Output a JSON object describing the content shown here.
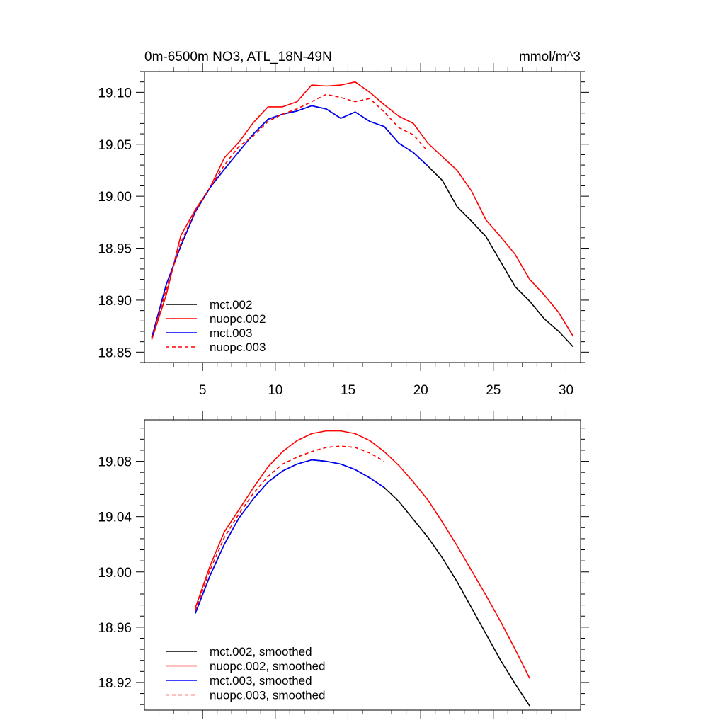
{
  "chart_data": [
    {
      "type": "line",
      "title": "0m-6500m NO3, ATL_18N-49N",
      "units": "mmol/m^3",
      "xlim": [
        1,
        31
      ],
      "ylim": [
        18.84,
        19.12
      ],
      "xticks": [
        5,
        10,
        15,
        20,
        25,
        30
      ],
      "xtick_labels": [
        "5",
        "10",
        "15",
        "20",
        "25",
        "30"
      ],
      "yticks": [
        18.85,
        18.9,
        18.95,
        19.0,
        19.05,
        19.1
      ],
      "ytick_labels": [
        "18.85",
        "18.90",
        "18.95",
        "19.00",
        "19.05",
        "19.10"
      ],
      "legend_position": "lower-left",
      "series": [
        {
          "name": "mct.002",
          "color": "#000000",
          "dash": "solid",
          "x": [
            1.5,
            2.5,
            3.5,
            4.5,
            5.5,
            6.5,
            7.5,
            8.5,
            9.5,
            10.5,
            11.5,
            12.5,
            13.5,
            14.5,
            15.5,
            16.5,
            17.5,
            18.5,
            19.5,
            20.5,
            21.5,
            22.5,
            23.5,
            24.5,
            25.5,
            26.5,
            27.5,
            28.5,
            29.5,
            30.5
          ],
          "values": [
            18.864,
            18.915,
            18.952,
            18.985,
            19.008,
            19.026,
            19.043,
            19.06,
            19.074,
            19.079,
            19.082,
            19.087,
            19.084,
            19.075,
            19.081,
            19.072,
            19.067,
            19.051,
            19.042,
            19.029,
            19.015,
            18.99,
            18.976,
            18.961,
            18.937,
            18.913,
            18.899,
            18.882,
            18.87,
            18.855
          ]
        },
        {
          "name": "nuopc.002",
          "color": "#ff0000",
          "dash": "solid",
          "x": [
            1.5,
            2.5,
            3.5,
            4.5,
            5.5,
            6.5,
            7.5,
            8.5,
            9.5,
            10.5,
            11.5,
            12.5,
            13.5,
            14.5,
            15.5,
            16.5,
            17.5,
            18.5,
            19.5,
            20.5,
            21.5,
            22.5,
            23.5,
            24.5,
            25.5,
            26.5,
            27.5,
            28.5,
            29.5,
            30.5
          ],
          "values": [
            18.862,
            18.905,
            18.962,
            18.987,
            19.008,
            19.037,
            19.052,
            19.071,
            19.086,
            19.086,
            19.091,
            19.107,
            19.106,
            19.107,
            19.11,
            19.1,
            19.088,
            19.077,
            19.07,
            19.051,
            19.038,
            19.025,
            19.005,
            18.977,
            18.961,
            18.944,
            18.92,
            18.905,
            18.888,
            18.865
          ]
        },
        {
          "name": "mct.003",
          "color": "#0000ff",
          "dash": "solid",
          "x": [
            1.5,
            2.5,
            3.5,
            4.5,
            5.5,
            6.5,
            7.5,
            8.5,
            9.5,
            10.5,
            11.5,
            12.5,
            13.5,
            14.5,
            15.5,
            16.5,
            17.5,
            18.5,
            19.5,
            20.5
          ],
          "values": [
            18.864,
            18.915,
            18.952,
            18.985,
            19.008,
            19.026,
            19.043,
            19.06,
            19.074,
            19.079,
            19.082,
            19.087,
            19.084,
            19.075,
            19.081,
            19.072,
            19.067,
            19.051,
            19.042,
            19.029
          ]
        },
        {
          "name": "nuopc.003",
          "color": "#ff0000",
          "dash": "dashed",
          "x": [
            1.5,
            2.5,
            3.5,
            4.5,
            5.5,
            6.5,
            7.5,
            8.5,
            9.5,
            10.5,
            11.5,
            12.5,
            13.5,
            14.5,
            15.5,
            16.5,
            17.5,
            18.5,
            19.5,
            20.5
          ],
          "values": [
            18.863,
            18.91,
            18.955,
            18.986,
            19.008,
            19.03,
            19.048,
            19.058,
            19.072,
            19.079,
            19.084,
            19.091,
            19.098,
            19.095,
            19.091,
            19.094,
            19.081,
            19.066,
            19.059,
            19.043
          ]
        }
      ]
    },
    {
      "type": "line",
      "xlim": [
        1,
        31
      ],
      "ylim": [
        18.9,
        19.11
      ],
      "xticks": [
        5,
        10,
        15,
        20,
        25,
        30
      ],
      "yticks": [
        18.92,
        18.96,
        19.0,
        19.04,
        19.08
      ],
      "ytick_labels": [
        "18.92",
        "18.96",
        "19.00",
        "19.04",
        "19.08"
      ],
      "legend_position": "lower-left",
      "series": [
        {
          "name": "mct.002, smoothed",
          "color": "#000000",
          "dash": "solid",
          "x": [
            4.5,
            5.5,
            6.5,
            7.5,
            8.5,
            9.5,
            10.5,
            11.5,
            12.5,
            13.5,
            14.5,
            15.5,
            16.5,
            17.5,
            18.5,
            19.5,
            20.5,
            21.5,
            22.5,
            23.5,
            24.5,
            25.5,
            26.5,
            27.5
          ],
          "values": [
            18.97,
            18.997,
            19.02,
            19.039,
            19.053,
            19.065,
            19.073,
            19.078,
            19.081,
            19.08,
            19.078,
            19.074,
            19.068,
            19.061,
            19.051,
            19.038,
            19.025,
            19.01,
            18.993,
            18.974,
            18.955,
            18.936,
            18.919,
            18.903
          ]
        },
        {
          "name": "nuopc.002, smoothed",
          "color": "#ff0000",
          "dash": "solid",
          "x": [
            4.5,
            5.5,
            6.5,
            7.5,
            8.5,
            9.5,
            10.5,
            11.5,
            12.5,
            13.5,
            14.5,
            15.5,
            16.5,
            17.5,
            18.5,
            19.5,
            20.5,
            21.5,
            22.5,
            23.5,
            24.5,
            25.5,
            26.5,
            27.5
          ],
          "values": [
            18.974,
            19.004,
            19.029,
            19.045,
            19.061,
            19.076,
            19.087,
            19.095,
            19.1,
            19.102,
            19.102,
            19.1,
            19.095,
            19.087,
            19.077,
            19.065,
            19.052,
            19.036,
            19.019,
            19.001,
            18.983,
            18.964,
            18.944,
            18.923
          ]
        },
        {
          "name": "mct.003, smoothed",
          "color": "#0000ff",
          "dash": "solid",
          "x": [
            4.5,
            5.5,
            6.5,
            7.5,
            8.5,
            9.5,
            10.5,
            11.5,
            12.5,
            13.5,
            14.5,
            15.5,
            16.5,
            17.5
          ],
          "values": [
            18.97,
            18.997,
            19.02,
            19.039,
            19.053,
            19.065,
            19.073,
            19.078,
            19.081,
            19.08,
            19.078,
            19.074,
            19.068,
            19.061
          ]
        },
        {
          "name": "nuopc.003, smoothed",
          "color": "#ff0000",
          "dash": "dashed",
          "x": [
            4.5,
            5.5,
            6.5,
            7.5,
            8.5,
            9.5,
            10.5,
            11.5,
            12.5,
            13.5,
            14.5,
            15.5,
            16.5,
            17.5
          ],
          "values": [
            18.972,
            19.001,
            19.025,
            19.042,
            19.057,
            19.069,
            19.078,
            19.083,
            19.087,
            19.09,
            19.091,
            19.09,
            19.086,
            19.08
          ]
        }
      ]
    }
  ]
}
